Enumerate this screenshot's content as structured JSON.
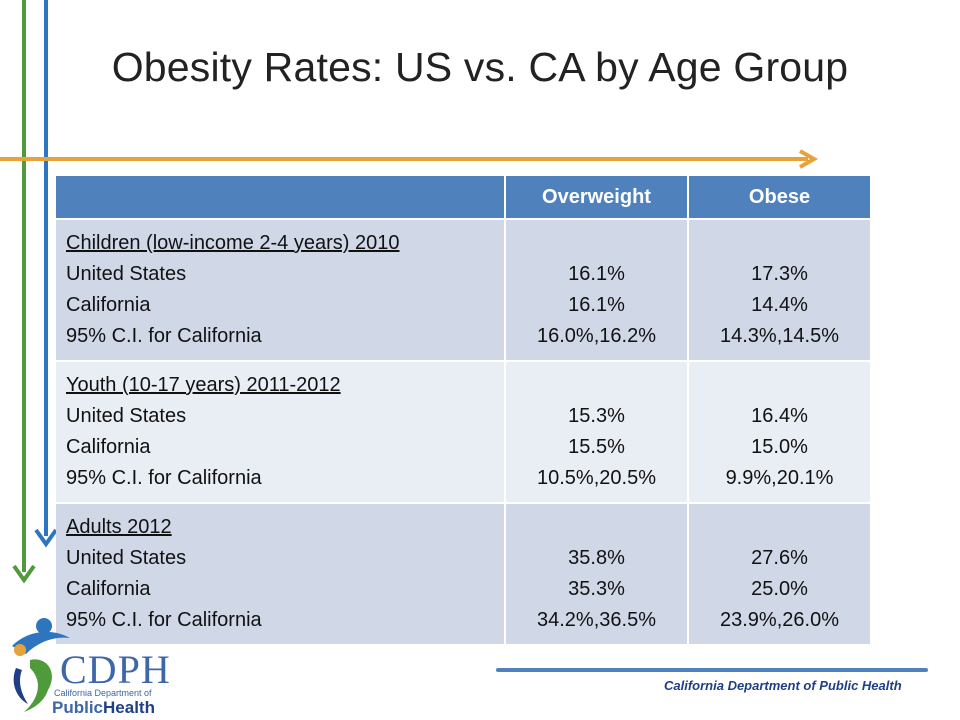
{
  "slide": {
    "title": "Obesity Rates: US vs. CA by Age Group"
  },
  "table": {
    "headers": [
      "",
      "Overweight",
      "Obese"
    ],
    "groups": [
      {
        "heading": "Children (low-income 2-4 years) 2010",
        "rows": [
          "United States",
          "California",
          "95% C.I. for California"
        ],
        "overweight": [
          "16.1%",
          "16.1%",
          "16.0%,16.2%"
        ],
        "obese": [
          "17.3%",
          "14.4%",
          "14.3%,14.5%"
        ]
      },
      {
        "heading": "Youth (10-17 years) 2011-2012",
        "rows": [
          "United States",
          "California",
          "95% C.I. for California"
        ],
        "overweight": [
          "15.3%",
          "15.5%",
          "10.5%,20.5%"
        ],
        "obese": [
          "16.4%",
          "15.0%",
          "9.9%,20.1%"
        ]
      },
      {
        "heading": "Adults 2012",
        "rows": [
          "United States",
          "California",
          "95% C.I. for California"
        ],
        "overweight": [
          "35.8%",
          "35.3%",
          "34.2%,36.5%"
        ],
        "obese": [
          "27.6%",
          "25.0%",
          "23.9%,26.0%"
        ]
      }
    ]
  },
  "footer": {
    "text": "California Department of Public Health"
  },
  "logo": {
    "wordmark": "CDPH",
    "subtitle": "California Department of",
    "public": "Public",
    "health": "Health"
  },
  "colors": {
    "header": "#4f81bd",
    "row_dark": "#d0d8e8",
    "row_light": "#e9edf4",
    "arrow_green": "#4f9a3a",
    "arrow_blue": "#2e75c0",
    "arrow_orange": "#e8a23a"
  }
}
